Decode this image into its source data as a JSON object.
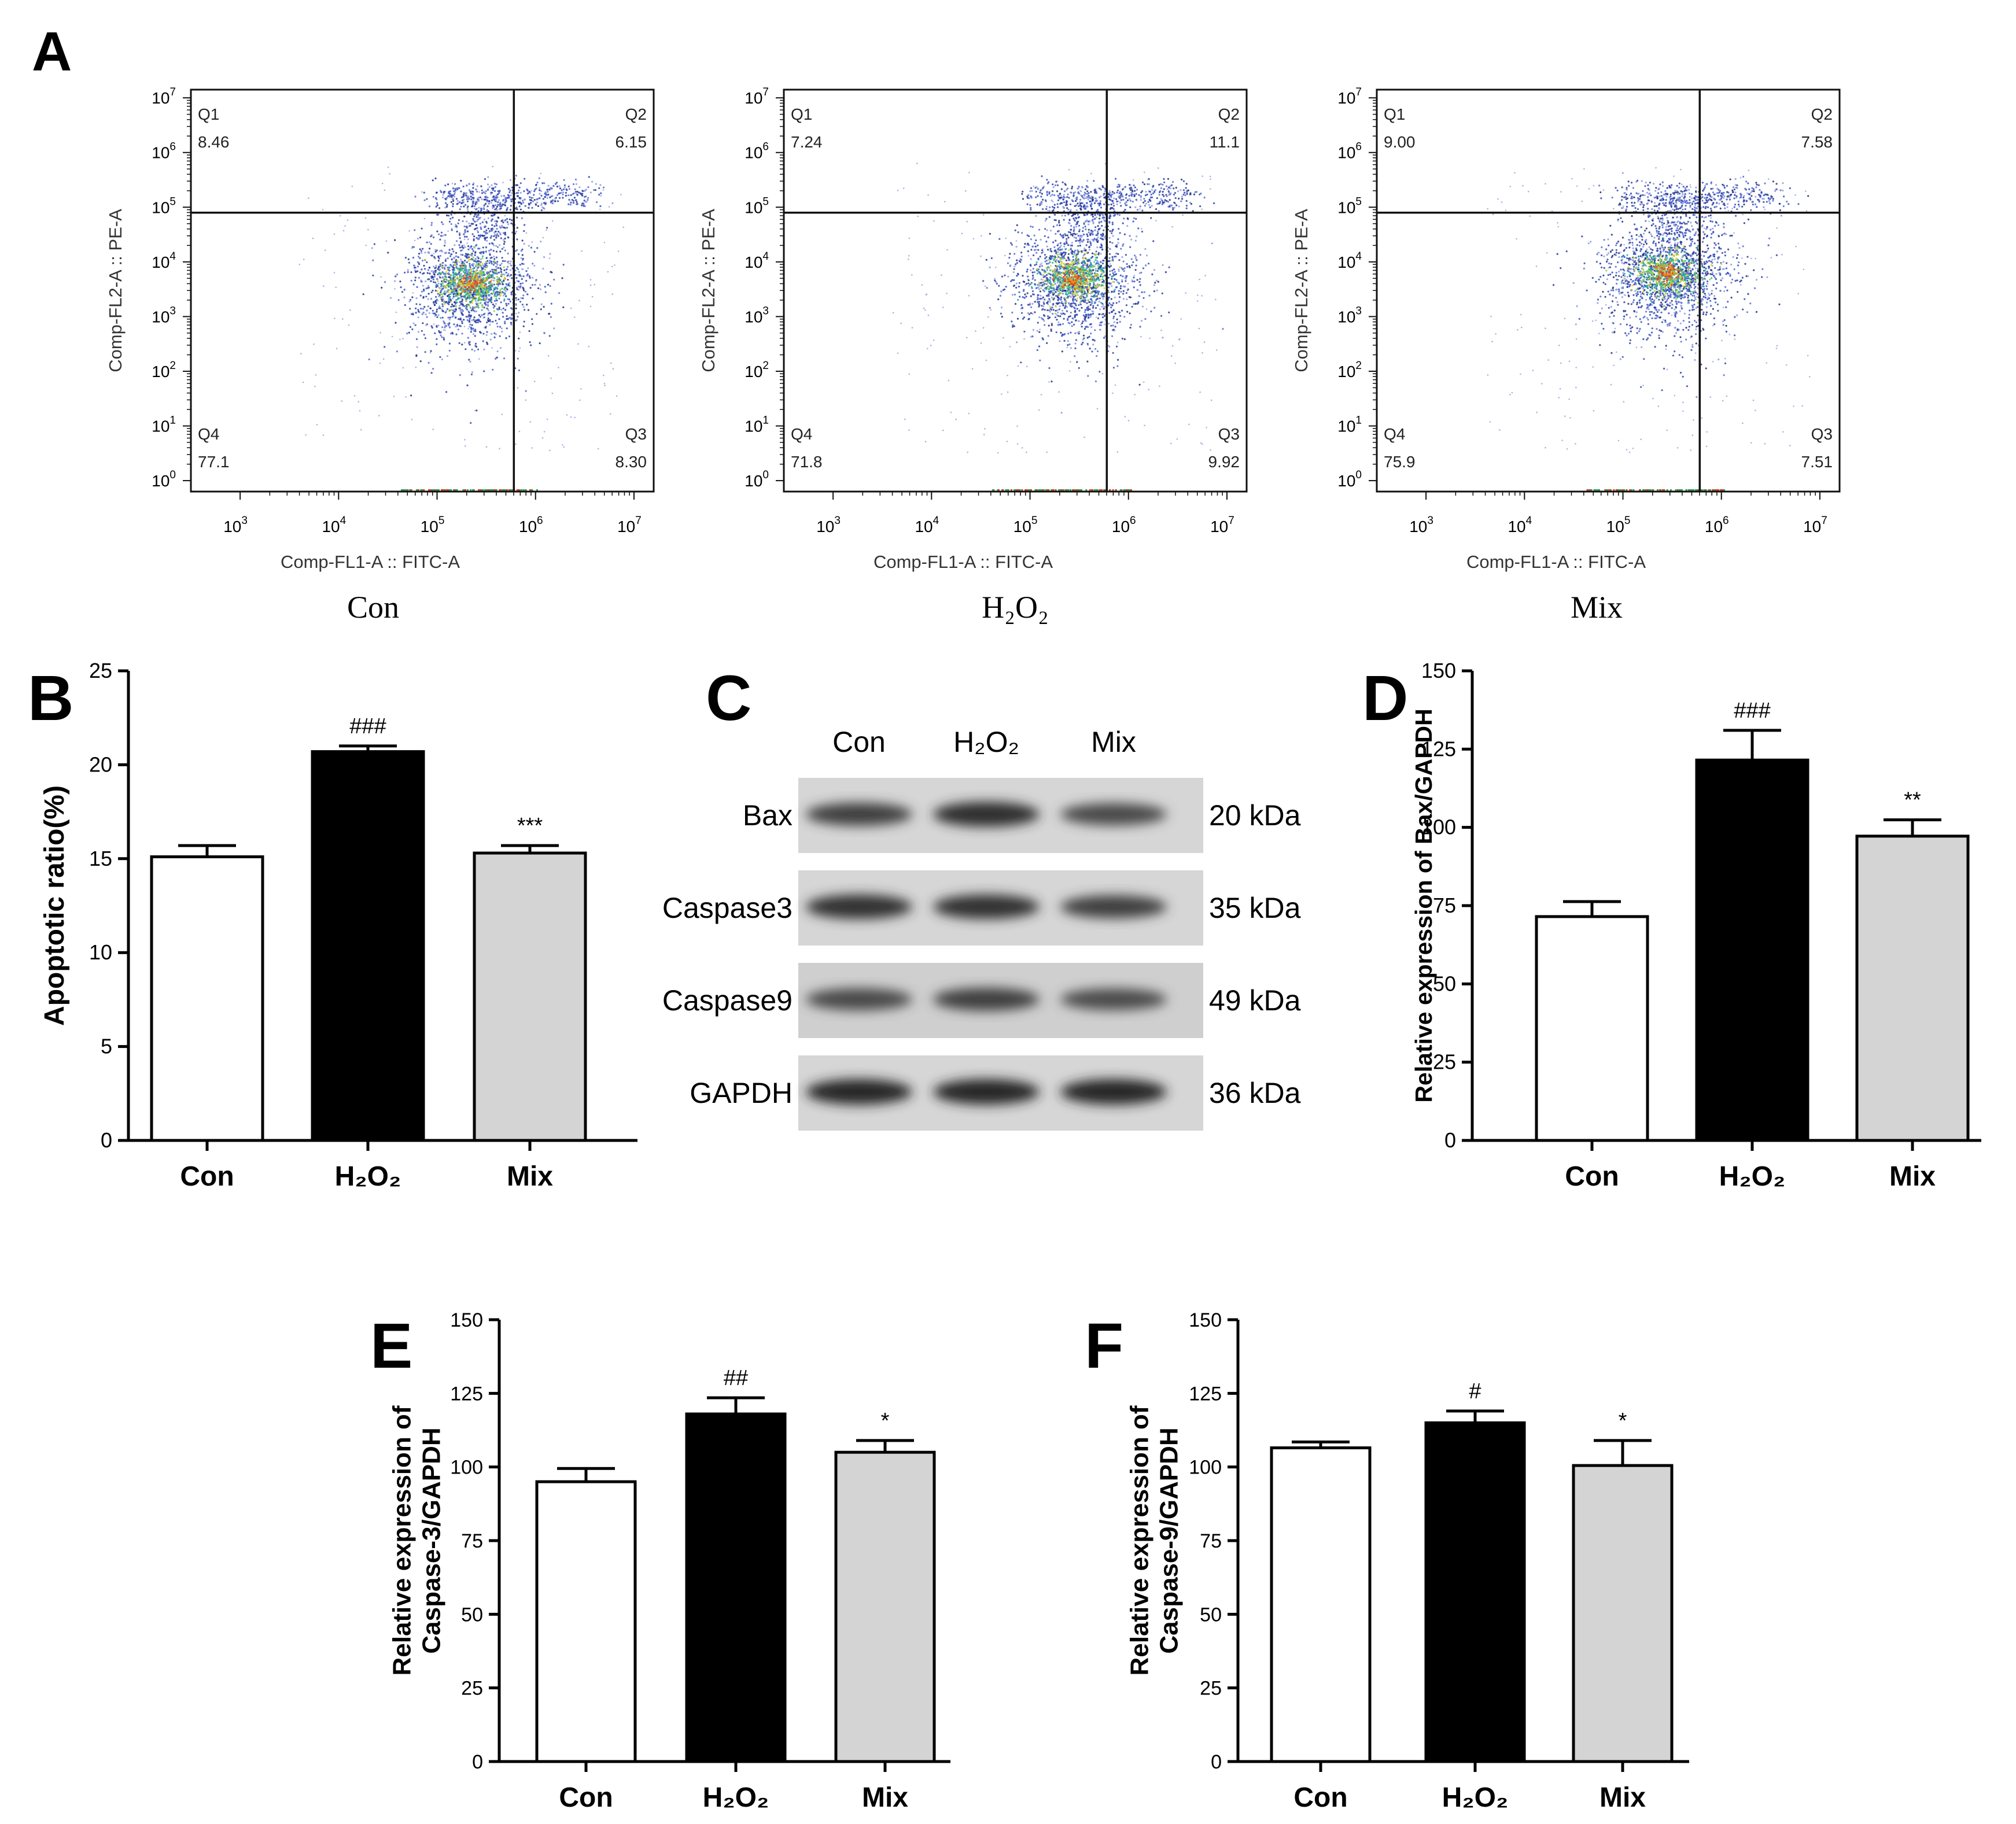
{
  "panel_letters": {
    "A": "A",
    "B": "B",
    "C": "C",
    "D": "D",
    "E": "E",
    "F": "F"
  },
  "flow": {
    "y_axis_label": "Comp-FL2-A :: PE-A",
    "x_axis_label": "Comp-FL1-A :: FITC-A",
    "x_ticks": [
      "3",
      "4",
      "5",
      "6",
      "7"
    ],
    "y_ticks": [
      "0",
      "1",
      "2",
      "3",
      "4",
      "5",
      "6",
      "7"
    ],
    "tick_base": "10",
    "gate_x_log": 5.78,
    "gate_y_log": 4.9,
    "plots": [
      {
        "name": "Con",
        "center": [
          5.35,
          3.6
        ],
        "q1_label": "Q1",
        "q1_value": "8.46",
        "q2_label": "Q2",
        "q2_value": "6.15",
        "q3_label": "Q3",
        "q3_value": "8.30",
        "q4_label": "Q4",
        "q4_value": "77.1"
      },
      {
        "name": "H₂O₂",
        "center": [
          5.45,
          3.7
        ],
        "q1_label": "Q1",
        "q1_value": "7.24",
        "q2_label": "Q2",
        "q2_value": "11.1",
        "q3_label": "Q3",
        "q3_value": "9.92",
        "q4_label": "Q4",
        "q4_value": "71.8"
      },
      {
        "name": "Mix",
        "center": [
          5.45,
          3.8
        ],
        "q1_label": "Q1",
        "q1_value": "9.00",
        "q2_label": "Q2",
        "q2_value": "7.58",
        "q3_label": "Q3",
        "q3_value": "7.51",
        "q4_label": "Q4",
        "q4_value": "75.9"
      }
    ]
  },
  "western_blot": {
    "lanes": [
      "Con",
      "H₂O₂",
      "Mix"
    ],
    "proteins": [
      {
        "name": "Bax",
        "size": "20 kDa",
        "intensity": [
          0.75,
          0.95,
          0.65
        ]
      },
      {
        "name": "Caspase3",
        "size": "35 kDa",
        "intensity": [
          0.9,
          0.9,
          0.75
        ]
      },
      {
        "name": "Caspase9",
        "size": "49 kDa",
        "intensity": [
          0.65,
          0.75,
          0.6
        ]
      },
      {
        "name": "GAPDH",
        "size": "36 kDa",
        "intensity": [
          1.0,
          1.0,
          1.0
        ]
      }
    ]
  },
  "chart_data": [
    {
      "id": "B",
      "type": "bar",
      "categories": [
        "Con",
        "H₂O₂",
        "Mix"
      ],
      "values": [
        15.1,
        20.7,
        15.3
      ],
      "errors": [
        0.6,
        0.3,
        0.4
      ],
      "annotations": [
        "",
        "###",
        "***"
      ],
      "ylabel": "Apoptotic ratio(%)",
      "ylim": [
        0,
        25
      ],
      "yticks": [
        0,
        5,
        10,
        15,
        20,
        25
      ],
      "colors": [
        "#ffffff",
        "#000000",
        "#d4d4d4"
      ]
    },
    {
      "id": "D",
      "type": "bar",
      "categories": [
        "Con",
        "H₂O₂",
        "Mix"
      ],
      "values": [
        71.5,
        121.5,
        97.2
      ],
      "errors": [
        4.8,
        9.5,
        5.2
      ],
      "annotations": [
        "",
        "###",
        "**"
      ],
      "ylabel": "Relative expression of Bax/GAPDH",
      "ylim": [
        0,
        150
      ],
      "yticks": [
        0,
        25,
        50,
        75,
        100,
        125,
        150
      ],
      "colors": [
        "#ffffff",
        "#000000",
        "#d4d4d4"
      ]
    },
    {
      "id": "E",
      "type": "bar",
      "categories": [
        "Con",
        "H₂O₂",
        "Mix"
      ],
      "values": [
        95,
        118,
        105
      ],
      "errors": [
        4.5,
        5.5,
        4.0
      ],
      "annotations": [
        "",
        "##",
        "*"
      ],
      "ylabel": "Relative expression of\nCaspase-3/GAPDH",
      "ylim": [
        0,
        150
      ],
      "yticks": [
        0,
        25,
        50,
        75,
        100,
        125,
        150
      ],
      "colors": [
        "#ffffff",
        "#000000",
        "#d4d4d4"
      ]
    },
    {
      "id": "F",
      "type": "bar",
      "categories": [
        "Con",
        "H₂O₂",
        "Mix"
      ],
      "values": [
        106.5,
        115,
        100.5
      ],
      "errors": [
        2.0,
        4.0,
        8.5
      ],
      "annotations": [
        "",
        "#",
        "*"
      ],
      "ylabel": "Relative expression of\nCaspase-9/GAPDH",
      "ylim": [
        0,
        150
      ],
      "yticks": [
        0,
        25,
        50,
        75,
        100,
        125,
        150
      ],
      "colors": [
        "#ffffff",
        "#000000",
        "#d4d4d4"
      ]
    }
  ]
}
